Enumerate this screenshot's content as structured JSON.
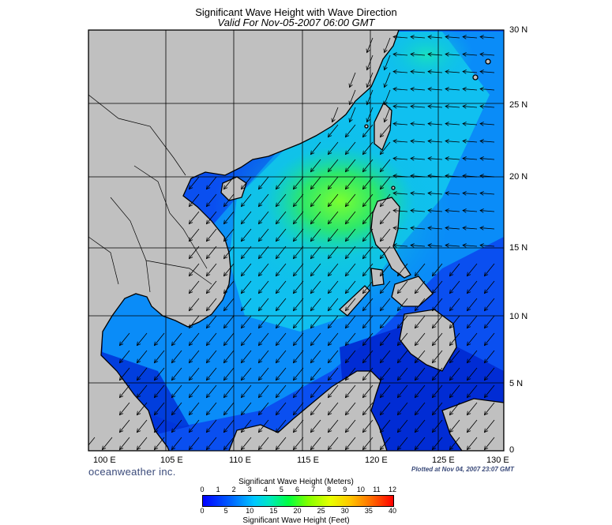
{
  "title": "Significant Wave Height with Wave Direction",
  "subtitle": "Valid For Nov-05-2007 06:00 GMT",
  "latitude_labels": [
    "30 N",
    "25 N",
    "20 N",
    "15 N",
    "10 N",
    "5 N",
    "0"
  ],
  "longitude_labels": [
    "100 E",
    "105 E",
    "110 E",
    "115 E",
    "120 E",
    "125 E",
    "130 E"
  ],
  "brand": "oceanweather inc.",
  "plotted": "Plotted at Nov 04, 2007 23:07 GMT",
  "scale": {
    "meters_label": "Significant Wave Height (Meters)",
    "feet_label": "Significant Wave Height (Feet)",
    "meters_ticks": [
      "0",
      "1",
      "2",
      "3",
      "4",
      "5",
      "6",
      "7",
      "8",
      "9",
      "10",
      "11",
      "12"
    ],
    "feet_ticks": [
      "0",
      "5",
      "10",
      "15",
      "20",
      "25",
      "30",
      "35",
      "40"
    ]
  },
  "colors": {
    "land": "#c0c0c0",
    "low_wave": "#0000ff",
    "high_wave": "#ff0000"
  }
}
